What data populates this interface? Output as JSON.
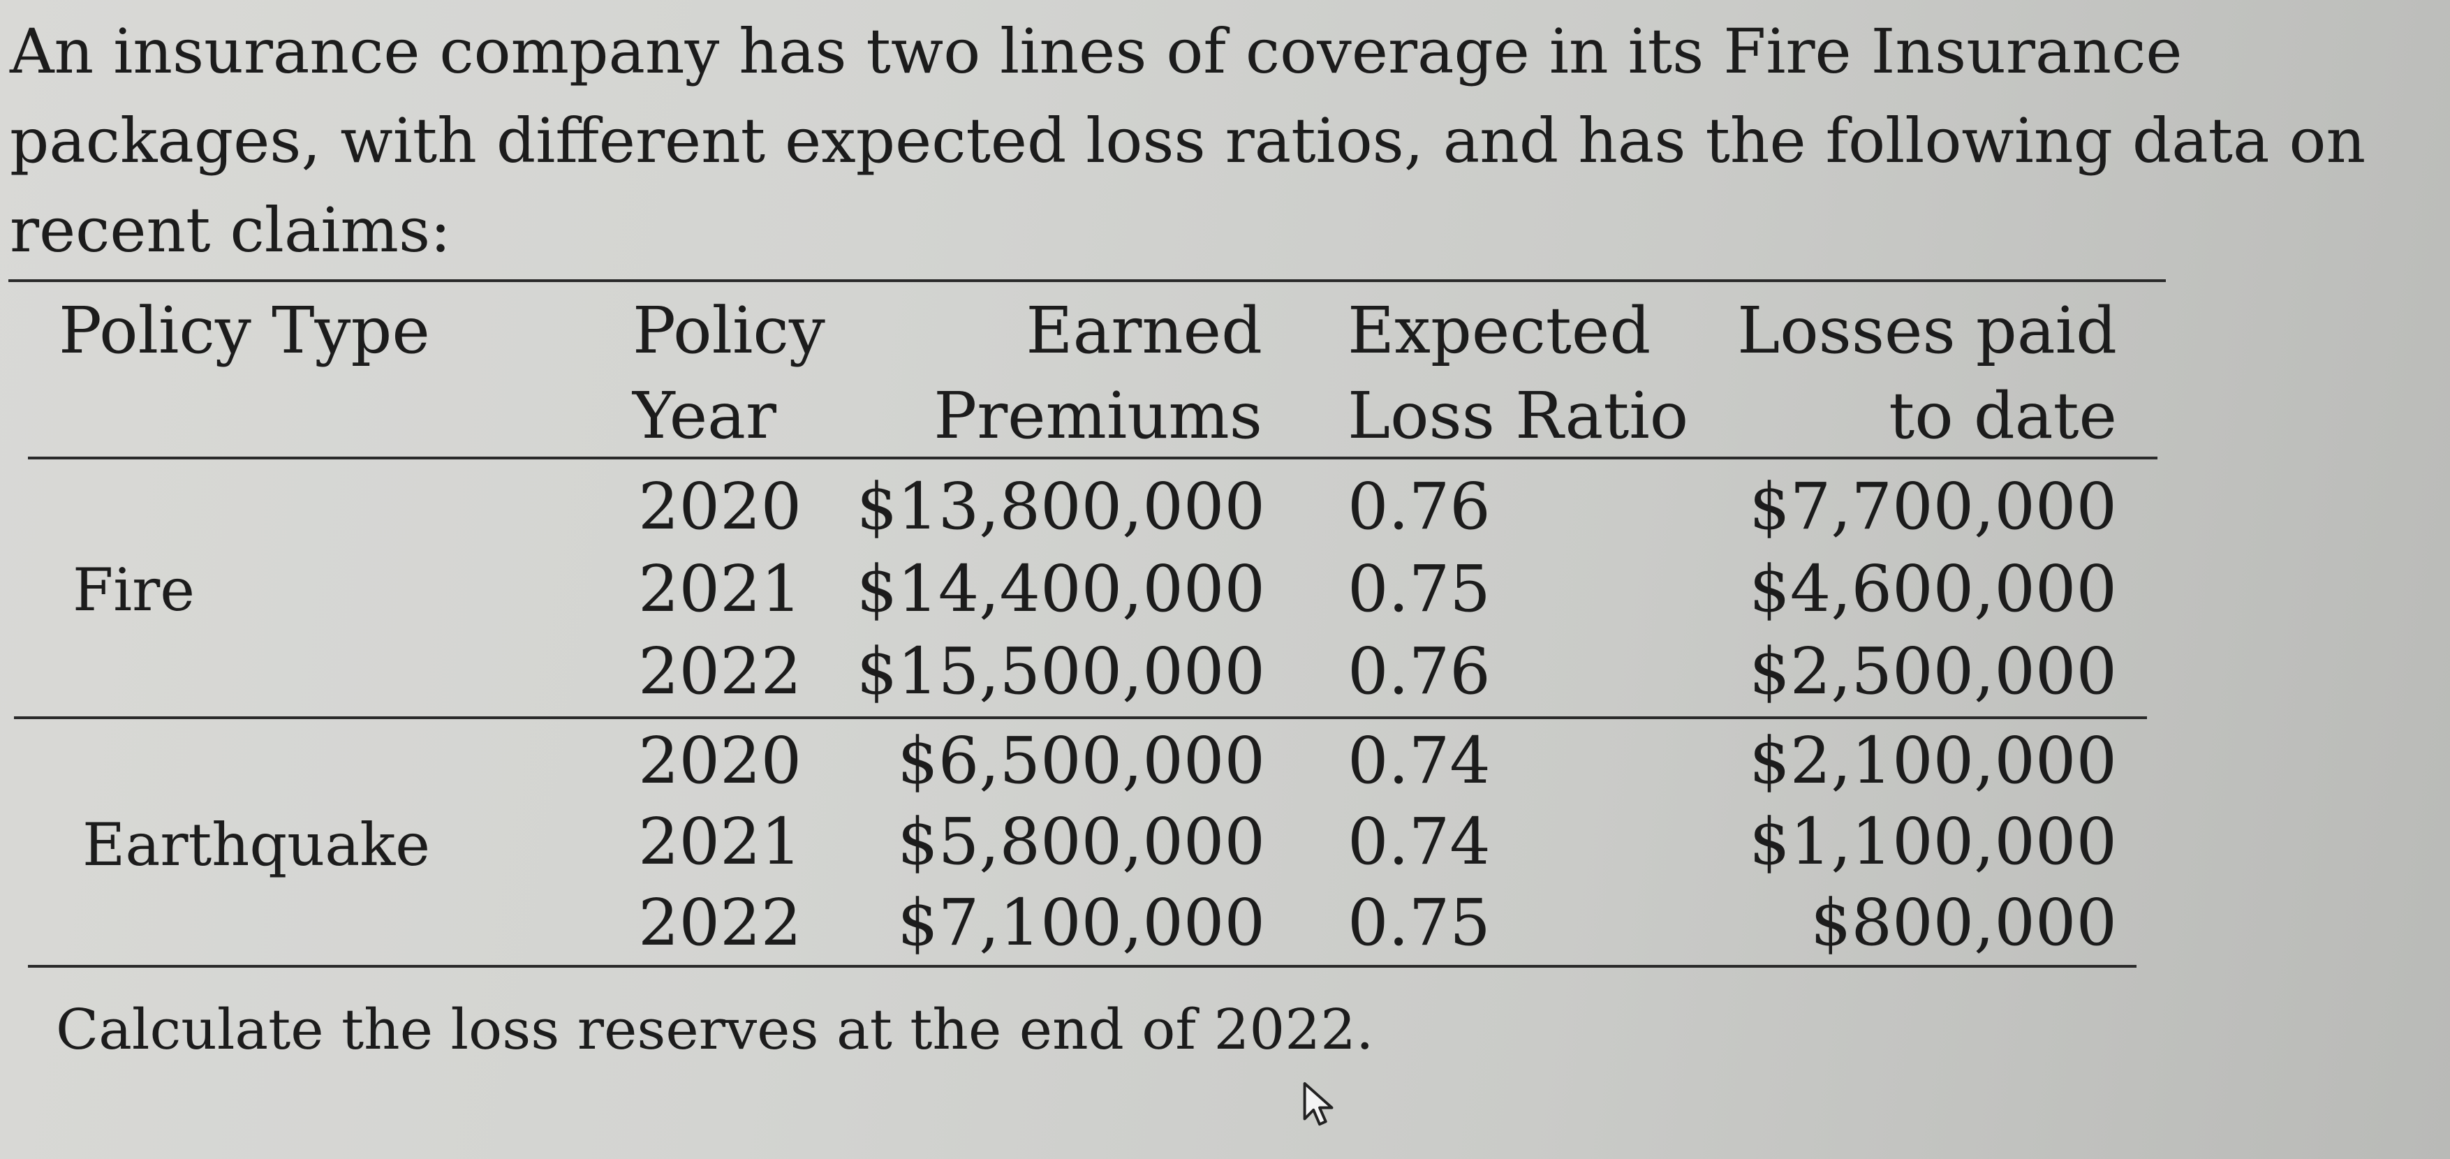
{
  "intro_text": "An insurance company has two lines of coverage in its Fire Insurance packages, with different expected loss ratios, and has the following data on recent claims:",
  "table": {
    "headers": {
      "policy_type": "Policy Type",
      "policy_year_1": "Policy",
      "policy_year_2": "Year",
      "earned_1": "Earned",
      "earned_2": "Premiums",
      "elr_1": "Expected",
      "elr_2": "Loss Ratio",
      "paid_1": "Losses paid",
      "paid_2": "to date"
    },
    "groups": [
      {
        "type": "Fire",
        "rows": [
          {
            "year": "2020",
            "premium": "$13,800,000",
            "elr": "0.76",
            "paid": "$7,700,000"
          },
          {
            "year": "2021",
            "premium": "$14,400,000",
            "elr": "0.75",
            "paid": "$4,600,000"
          },
          {
            "year": "2022",
            "premium": "$15,500,000",
            "elr": "0.76",
            "paid": "$2,500,000"
          }
        ]
      },
      {
        "type": "Earthquake",
        "rows": [
          {
            "year": "2020",
            "premium": "$6,500,000",
            "elr": "0.74",
            "paid": "$2,100,000"
          },
          {
            "year": "2021",
            "premium": "$5,800,000",
            "elr": "0.74",
            "paid": "$1,100,000"
          },
          {
            "year": "2022",
            "premium": "$7,100,000",
            "elr": "0.75",
            "paid": "$800,000"
          }
        ]
      }
    ]
  },
  "question": "Calculate the loss reserves at the end of 2022."
}
